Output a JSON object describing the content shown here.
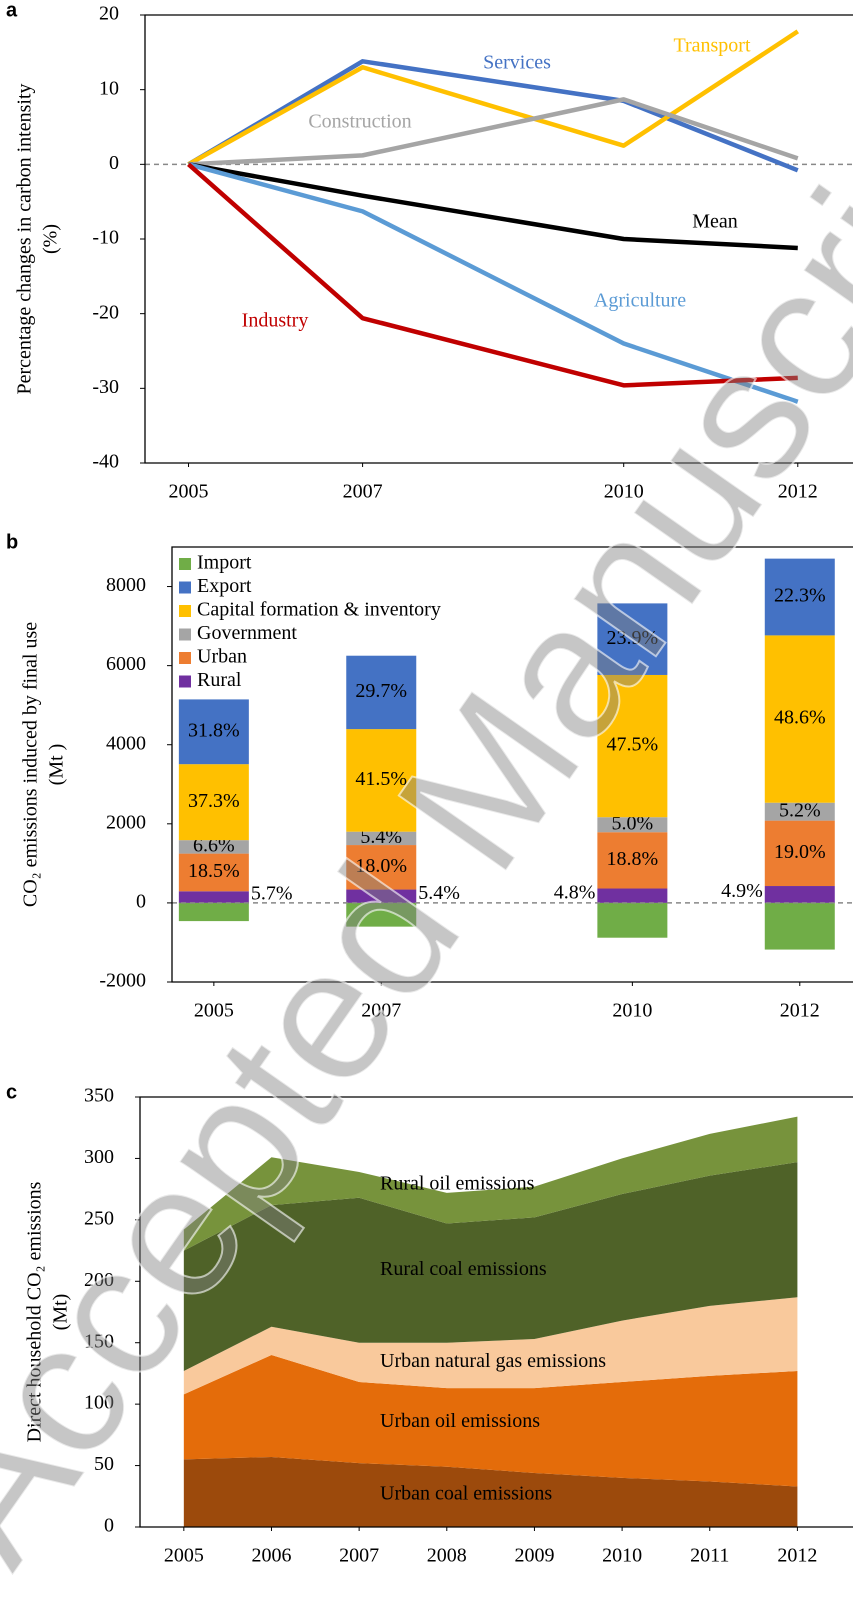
{
  "watermark": "Accepted Manuscript",
  "chart_data": [
    {
      "type": "line",
      "panel": "a",
      "y_label": [
        "Percentage changes in carbon intensity",
        "(%)"
      ],
      "x": [
        2005,
        2007,
        2010,
        2012
      ],
      "xlim": [
        2004.5,
        2012.6
      ],
      "xticks": [
        2005,
        2007,
        2010,
        2012
      ],
      "ylim": [
        -40,
        20
      ],
      "yticks": [
        -40,
        -30,
        -20,
        -10,
        0,
        10,
        20
      ],
      "series": [
        {
          "name": "Services",
          "color": "#4472c4",
          "values": [
            0,
            13.8,
            8.5,
            -0.8
          ]
        },
        {
          "name": "Transport",
          "color": "#ffc000",
          "values": [
            0,
            13,
            2.5,
            17.8
          ]
        },
        {
          "name": "Construction",
          "color": "#a5a5a5",
          "values": [
            0,
            1.2,
            8.7,
            0.8
          ]
        },
        {
          "name": "Mean",
          "color": "#000000",
          "values": [
            0,
            -4.2,
            -10,
            -11.2
          ]
        },
        {
          "name": "Agriculture",
          "color": "#5b9bd5",
          "values": [
            0,
            -6.3,
            -24,
            -31.8
          ]
        },
        {
          "name": "Industry",
          "color": "#c00000",
          "values": [
            0,
            -20.6,
            -29.6,
            -28.6
          ]
        }
      ]
    },
    {
      "type": "stacked_bar",
      "panel": "b",
      "y_label": [
        "CO₂ emissions induced by final use",
        "(Mt )"
      ],
      "x": [
        2005,
        2007,
        2010,
        2012
      ],
      "xlim": [
        2004.5,
        2012.6
      ],
      "xticks": [
        2005,
        2007,
        2010,
        2012
      ],
      "ylim": [
        -2000,
        9000
      ],
      "yticks": [
        -2000,
        0,
        2000,
        4000,
        6000,
        8000
      ],
      "legend": "top-left",
      "series": [
        {
          "name": "Rural",
          "color": "#7030a0",
          "values": [
            294,
            338,
            364,
            427
          ],
          "share_labels": [
            "5.7%",
            "5.4%",
            "4.8%",
            "4.9%"
          ]
        },
        {
          "name": "Urban",
          "color": "#ed7d31",
          "values": [
            953,
            1125,
            1424,
            1654
          ],
          "share_labels": [
            "18.5%",
            "18.0%",
            "18.8%",
            "19.0%"
          ]
        },
        {
          "name": "Government",
          "color": "#a5a5a5",
          "values": [
            340,
            338,
            379,
            453
          ],
          "share_labels": [
            "6.6%",
            "5.4%",
            "5.0%",
            "5.2%"
          ]
        },
        {
          "name": "Capital formation & inventory",
          "color": "#ffc000",
          "values": [
            1921,
            2594,
            3597,
            4231
          ],
          "share_labels": [
            "37.3%",
            "41.5%",
            "47.5%",
            "48.6%"
          ]
        },
        {
          "name": "Export",
          "color": "#4472c4",
          "values": [
            1638,
            1856,
            1810,
            1941
          ],
          "share_labels": [
            "31.8%",
            "29.7%",
            "23.9%",
            "22.3%"
          ]
        },
        {
          "name": "Import",
          "color": "#70ad47",
          "values": [
            -460,
            -600,
            -880,
            -1180
          ]
        }
      ]
    },
    {
      "type": "stacked_area",
      "panel": "c",
      "y_label": [
        "Direct household CO₂ emissions",
        "(Mt)"
      ],
      "x": [
        2005,
        2006,
        2007,
        2008,
        2009,
        2010,
        2011,
        2012
      ],
      "xlim": [
        2004.5,
        2012.6
      ],
      "xticks": [
        2005,
        2006,
        2007,
        2008,
        2009,
        2010,
        2011,
        2012
      ],
      "ylim": [
        0,
        350
      ],
      "yticks": [
        0,
        50,
        100,
        150,
        200,
        250,
        300,
        350
      ],
      "series": [
        {
          "name": "Urban coal emissions",
          "color": "#9c4a0c",
          "values": [
            55,
            57,
            52,
            49,
            44,
            40,
            37,
            33
          ]
        },
        {
          "name": "Urban oil emissions",
          "color": "#e46c0a",
          "values": [
            53,
            83,
            66,
            64,
            69,
            78,
            86,
            94
          ]
        },
        {
          "name": "Urban natural gas emissions",
          "color": "#f9c99c",
          "values": [
            19,
            23,
            32,
            37,
            40,
            50,
            57,
            60
          ]
        },
        {
          "name": "Rural coal emissions",
          "color": "#4f6228",
          "values": [
            98,
            99,
            118,
            97,
            99,
            103,
            106,
            110
          ]
        },
        {
          "name": "Rural oil emissions",
          "color": "#77933c",
          "values": [
            17,
            39,
            21,
            25,
            25,
            29,
            34,
            37
          ]
        }
      ]
    }
  ]
}
